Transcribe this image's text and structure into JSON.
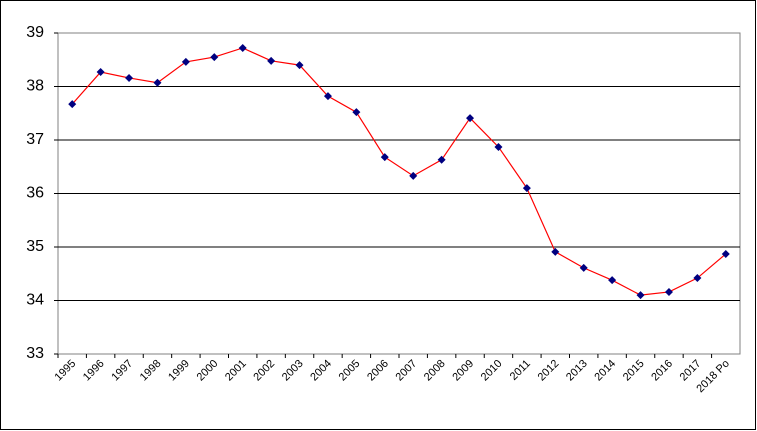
{
  "chart_data": {
    "type": "line",
    "categories": [
      "1995",
      "1996",
      "1997",
      "1998",
      "1999",
      "2000",
      "2001",
      "2002",
      "2003",
      "2004",
      "2005",
      "2006",
      "2007",
      "2008",
      "2009",
      "2010",
      "2011",
      "2012",
      "2013",
      "2014",
      "2015",
      "2016",
      "2017",
      "2018 Po"
    ],
    "series": [
      {
        "color": "#ff0000",
        "marker_color": "#000080",
        "values": [
          37.67,
          38.27,
          38.16,
          38.07,
          38.46,
          38.55,
          38.72,
          38.48,
          38.4,
          37.82,
          37.52,
          36.68,
          36.33,
          36.63,
          37.41,
          36.87,
          36.1,
          34.91,
          34.61,
          34.38,
          34.1,
          34.16,
          34.42,
          34.87
        ]
      }
    ],
    "ylim": [
      33,
      39
    ],
    "yticks": [
      33,
      34,
      35,
      36,
      37,
      38,
      39
    ],
    "grid": true
  }
}
